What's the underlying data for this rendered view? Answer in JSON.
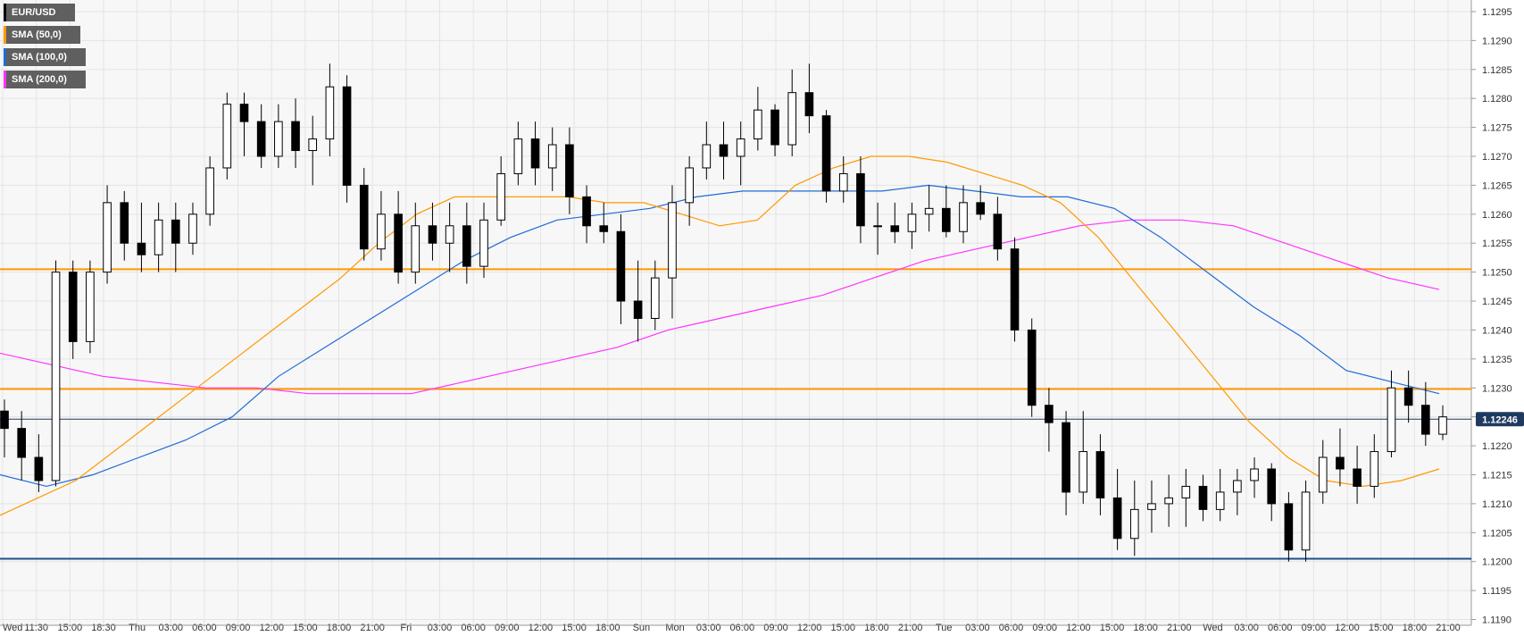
{
  "legend": [
    {
      "label": "EUR/USD",
      "color": "#000000"
    },
    {
      "label": "SMA (50,0)",
      "color": "#ff9900"
    },
    {
      "label": "SMA (100,0)",
      "color": "#1f6bd6"
    },
    {
      "label": "SMA (200,0)",
      "color": "#ff33ff"
    }
  ],
  "chart_data": {
    "type": "candlestick",
    "symbol": "EUR/USD",
    "ylim": [
      1.1189,
      1.1297
    ],
    "y_ticks": [
      "1.1295",
      "1.1290",
      "1.1285",
      "1.1280",
      "1.1275",
      "1.1270",
      "1.1265",
      "1.1260",
      "1.1255",
      "1.1250",
      "1.1245",
      "1.1240",
      "1.1235",
      "1.1230",
      "1.1225",
      "1.1220",
      "1.1215",
      "1.1210",
      "1.1205",
      "1.1200",
      "1.1195",
      "1.1190"
    ],
    "x_ticks": [
      "Wed",
      "11:30",
      "15:00",
      "18:30",
      "Thu",
      "03:00",
      "06:00",
      "09:00",
      "12:00",
      "15:00",
      "18:00",
      "21:00",
      "Fri",
      "03:00",
      "06:00",
      "09:00",
      "12:00",
      "15:00",
      "18:00",
      "Sun",
      "Mon",
      "03:00",
      "06:00",
      "09:00",
      "12:00",
      "15:00",
      "18:00",
      "21:00",
      "Tue",
      "03:00",
      "06:00",
      "09:00",
      "12:00",
      "15:00",
      "18:00",
      "21:00",
      "Wed",
      "03:00",
      "06:00",
      "09:00",
      "12:00",
      "15:00",
      "18:00",
      "21:00"
    ],
    "current_price": "1.12246",
    "grid": true,
    "legend_position": "top-left",
    "horizontal_levels": [
      {
        "value": 1.12505,
        "color": "#ff9900"
      },
      {
        "value": 1.12298,
        "color": "#ff9900"
      },
      {
        "value": 1.12005,
        "color": "#1f4e8c"
      },
      {
        "value": 1.12246,
        "color": "#1f3a5f"
      }
    ],
    "candles": [
      {
        "o": 1.1226,
        "h": 1.1228,
        "l": 1.1218,
        "c": 1.1223
      },
      {
        "o": 1.1223,
        "h": 1.1226,
        "l": 1.1214,
        "c": 1.1218
      },
      {
        "o": 1.1218,
        "h": 1.1222,
        "l": 1.1212,
        "c": 1.1214
      },
      {
        "o": 1.1214,
        "h": 1.1252,
        "l": 1.1213,
        "c": 1.125
      },
      {
        "o": 1.125,
        "h": 1.1252,
        "l": 1.1235,
        "c": 1.1238
      },
      {
        "o": 1.1238,
        "h": 1.1252,
        "l": 1.1236,
        "c": 1.125
      },
      {
        "o": 1.125,
        "h": 1.1265,
        "l": 1.1248,
        "c": 1.1262
      },
      {
        "o": 1.1262,
        "h": 1.1264,
        "l": 1.1252,
        "c": 1.1255
      },
      {
        "o": 1.1255,
        "h": 1.1262,
        "l": 1.125,
        "c": 1.1253
      },
      {
        "o": 1.1253,
        "h": 1.1262,
        "l": 1.125,
        "c": 1.1259
      },
      {
        "o": 1.1259,
        "h": 1.1262,
        "l": 1.125,
        "c": 1.1255
      },
      {
        "o": 1.1255,
        "h": 1.1262,
        "l": 1.1253,
        "c": 1.126
      },
      {
        "o": 1.126,
        "h": 1.127,
        "l": 1.1258,
        "c": 1.1268
      },
      {
        "o": 1.1268,
        "h": 1.1281,
        "l": 1.1266,
        "c": 1.1279
      },
      {
        "o": 1.1279,
        "h": 1.1281,
        "l": 1.127,
        "c": 1.1276
      },
      {
        "o": 1.1276,
        "h": 1.1279,
        "l": 1.1268,
        "c": 1.127
      },
      {
        "o": 1.127,
        "h": 1.1279,
        "l": 1.1268,
        "c": 1.1276
      },
      {
        "o": 1.1276,
        "h": 1.128,
        "l": 1.1268,
        "c": 1.1271
      },
      {
        "o": 1.1271,
        "h": 1.1277,
        "l": 1.1265,
        "c": 1.1273
      },
      {
        "o": 1.1273,
        "h": 1.1286,
        "l": 1.127,
        "c": 1.1282
      },
      {
        "o": 1.1282,
        "h": 1.1284,
        "l": 1.1262,
        "c": 1.1265
      },
      {
        "o": 1.1265,
        "h": 1.1268,
        "l": 1.1252,
        "c": 1.1254
      },
      {
        "o": 1.1254,
        "h": 1.1264,
        "l": 1.1252,
        "c": 1.126
      },
      {
        "o": 1.126,
        "h": 1.1264,
        "l": 1.1248,
        "c": 1.125
      },
      {
        "o": 1.125,
        "h": 1.1262,
        "l": 1.1248,
        "c": 1.1258
      },
      {
        "o": 1.1258,
        "h": 1.1262,
        "l": 1.1252,
        "c": 1.1255
      },
      {
        "o": 1.1255,
        "h": 1.1262,
        "l": 1.125,
        "c": 1.1258
      },
      {
        "o": 1.1258,
        "h": 1.1262,
        "l": 1.1248,
        "c": 1.1251
      },
      {
        "o": 1.1251,
        "h": 1.1262,
        "l": 1.1249,
        "c": 1.1259
      },
      {
        "o": 1.1259,
        "h": 1.127,
        "l": 1.1258,
        "c": 1.1267
      },
      {
        "o": 1.1267,
        "h": 1.1276,
        "l": 1.1265,
        "c": 1.1273
      },
      {
        "o": 1.1273,
        "h": 1.1276,
        "l": 1.1265,
        "c": 1.1268
      },
      {
        "o": 1.1268,
        "h": 1.1275,
        "l": 1.1264,
        "c": 1.1272
      },
      {
        "o": 1.1272,
        "h": 1.1275,
        "l": 1.126,
        "c": 1.1263
      },
      {
        "o": 1.1263,
        "h": 1.1265,
        "l": 1.1255,
        "c": 1.1258
      },
      {
        "o": 1.1258,
        "h": 1.1262,
        "l": 1.1255,
        "c": 1.1257
      },
      {
        "o": 1.1257,
        "h": 1.126,
        "l": 1.1241,
        "c": 1.1245
      },
      {
        "o": 1.1245,
        "h": 1.1252,
        "l": 1.1238,
        "c": 1.1242
      },
      {
        "o": 1.1242,
        "h": 1.1252,
        "l": 1.124,
        "c": 1.1249
      },
      {
        "o": 1.1249,
        "h": 1.1265,
        "l": 1.1242,
        "c": 1.1262
      },
      {
        "o": 1.1262,
        "h": 1.127,
        "l": 1.1258,
        "c": 1.1268
      },
      {
        "o": 1.1268,
        "h": 1.1276,
        "l": 1.1266,
        "c": 1.1272
      },
      {
        "o": 1.1272,
        "h": 1.1276,
        "l": 1.1266,
        "c": 1.127
      },
      {
        "o": 1.127,
        "h": 1.1276,
        "l": 1.1265,
        "c": 1.1273
      },
      {
        "o": 1.1273,
        "h": 1.1282,
        "l": 1.1271,
        "c": 1.1278
      },
      {
        "o": 1.1278,
        "h": 1.1279,
        "l": 1.127,
        "c": 1.1272
      },
      {
        "o": 1.1272,
        "h": 1.1285,
        "l": 1.127,
        "c": 1.1281
      },
      {
        "o": 1.1281,
        "h": 1.1286,
        "l": 1.1274,
        "c": 1.1277
      },
      {
        "o": 1.1277,
        "h": 1.1278,
        "l": 1.1262,
        "c": 1.1264
      },
      {
        "o": 1.1264,
        "h": 1.127,
        "l": 1.1262,
        "c": 1.1267
      },
      {
        "o": 1.1267,
        "h": 1.127,
        "l": 1.1255,
        "c": 1.1258
      },
      {
        "o": 1.1258,
        "h": 1.1262,
        "l": 1.1253,
        "c": 1.1258
      },
      {
        "o": 1.1258,
        "h": 1.1262,
        "l": 1.1255,
        "c": 1.1257
      },
      {
        "o": 1.1257,
        "h": 1.1262,
        "l": 1.1254,
        "c": 1.126
      },
      {
        "o": 1.126,
        "h": 1.1265,
        "l": 1.1257,
        "c": 1.1261
      },
      {
        "o": 1.1261,
        "h": 1.1265,
        "l": 1.1256,
        "c": 1.1257
      },
      {
        "o": 1.1257,
        "h": 1.1265,
        "l": 1.1255,
        "c": 1.1262
      },
      {
        "o": 1.1262,
        "h": 1.1265,
        "l": 1.1259,
        "c": 1.126
      },
      {
        "o": 1.126,
        "h": 1.1263,
        "l": 1.1252,
        "c": 1.1254
      },
      {
        "o": 1.1254,
        "h": 1.1256,
        "l": 1.1238,
        "c": 1.124
      },
      {
        "o": 1.124,
        "h": 1.1242,
        "l": 1.1225,
        "c": 1.1227
      },
      {
        "o": 1.1227,
        "h": 1.123,
        "l": 1.1219,
        "c": 1.1224
      },
      {
        "o": 1.1224,
        "h": 1.1226,
        "l": 1.1208,
        "c": 1.1212
      },
      {
        "o": 1.1212,
        "h": 1.1226,
        "l": 1.121,
        "c": 1.1219
      },
      {
        "o": 1.1219,
        "h": 1.1222,
        "l": 1.1208,
        "c": 1.1211
      },
      {
        "o": 1.1211,
        "h": 1.1216,
        "l": 1.1202,
        "c": 1.1204
      },
      {
        "o": 1.1204,
        "h": 1.1214,
        "l": 1.1201,
        "c": 1.1209
      },
      {
        "o": 1.1209,
        "h": 1.1214,
        "l": 1.1205,
        "c": 1.121
      },
      {
        "o": 1.121,
        "h": 1.1215,
        "l": 1.1206,
        "c": 1.1211
      },
      {
        "o": 1.1211,
        "h": 1.1216,
        "l": 1.1206,
        "c": 1.1213
      },
      {
        "o": 1.1213,
        "h": 1.1215,
        "l": 1.1207,
        "c": 1.1209
      },
      {
        "o": 1.1209,
        "h": 1.1216,
        "l": 1.1207,
        "c": 1.1212
      },
      {
        "o": 1.1212,
        "h": 1.1216,
        "l": 1.1208,
        "c": 1.1214
      },
      {
        "o": 1.1214,
        "h": 1.1218,
        "l": 1.1211,
        "c": 1.1216
      },
      {
        "o": 1.1216,
        "h": 1.1217,
        "l": 1.1207,
        "c": 1.121
      },
      {
        "o": 1.121,
        "h": 1.1212,
        "l": 1.12,
        "c": 1.1202
      },
      {
        "o": 1.1202,
        "h": 1.1214,
        "l": 1.12,
        "c": 1.1212
      },
      {
        "o": 1.1212,
        "h": 1.1221,
        "l": 1.121,
        "c": 1.1218
      },
      {
        "o": 1.1218,
        "h": 1.1223,
        "l": 1.1213,
        "c": 1.1216
      },
      {
        "o": 1.1216,
        "h": 1.122,
        "l": 1.121,
        "c": 1.1213
      },
      {
        "o": 1.1213,
        "h": 1.1222,
        "l": 1.1211,
        "c": 1.1219
      },
      {
        "o": 1.1219,
        "h": 1.1233,
        "l": 1.1218,
        "c": 1.123
      },
      {
        "o": 1.123,
        "h": 1.1233,
        "l": 1.1224,
        "c": 1.1227
      },
      {
        "o": 1.1227,
        "h": 1.1231,
        "l": 1.122,
        "c": 1.1222
      },
      {
        "o": 1.1222,
        "h": 1.1227,
        "l": 1.1221,
        "c": 1.1225
      }
    ],
    "sma_50": [
      1.1208,
      1.1211,
      1.1214,
      1.1219,
      1.1224,
      1.1229,
      1.1234,
      1.1239,
      1.1244,
      1.1249,
      1.1255,
      1.126,
      1.1263,
      1.1263,
      1.1263,
      1.1263,
      1.1262,
      1.1262,
      1.126,
      1.1258,
      1.1259,
      1.1265,
      1.1268,
      1.127,
      1.127,
      1.1269,
      1.1267,
      1.1265,
      1.1262,
      1.1256,
      1.1248,
      1.124,
      1.1232,
      1.1224,
      1.1218,
      1.1214,
      1.1213,
      1.1214,
      1.1216
    ],
    "sma_100": [
      1.1215,
      1.1213,
      1.1215,
      1.1218,
      1.1221,
      1.1225,
      1.1232,
      1.1237,
      1.1242,
      1.1247,
      1.1252,
      1.1256,
      1.1259,
      1.126,
      1.1261,
      1.1263,
      1.1264,
      1.1264,
      1.1264,
      1.1264,
      1.1265,
      1.1264,
      1.1263,
      1.1263,
      1.1261,
      1.1256,
      1.125,
      1.1244,
      1.1239,
      1.1233,
      1.1231,
      1.1229
    ],
    "sma_200": [
      1.1236,
      1.1234,
      1.1232,
      1.1231,
      1.123,
      1.123,
      1.1229,
      1.1229,
      1.1229,
      1.1231,
      1.1233,
      1.1235,
      1.1237,
      1.124,
      1.1242,
      1.1244,
      1.1246,
      1.1249,
      1.1252,
      1.1254,
      1.1256,
      1.1258,
      1.1259,
      1.1259,
      1.1258,
      1.1255,
      1.1252,
      1.1249,
      1.1247
    ]
  }
}
